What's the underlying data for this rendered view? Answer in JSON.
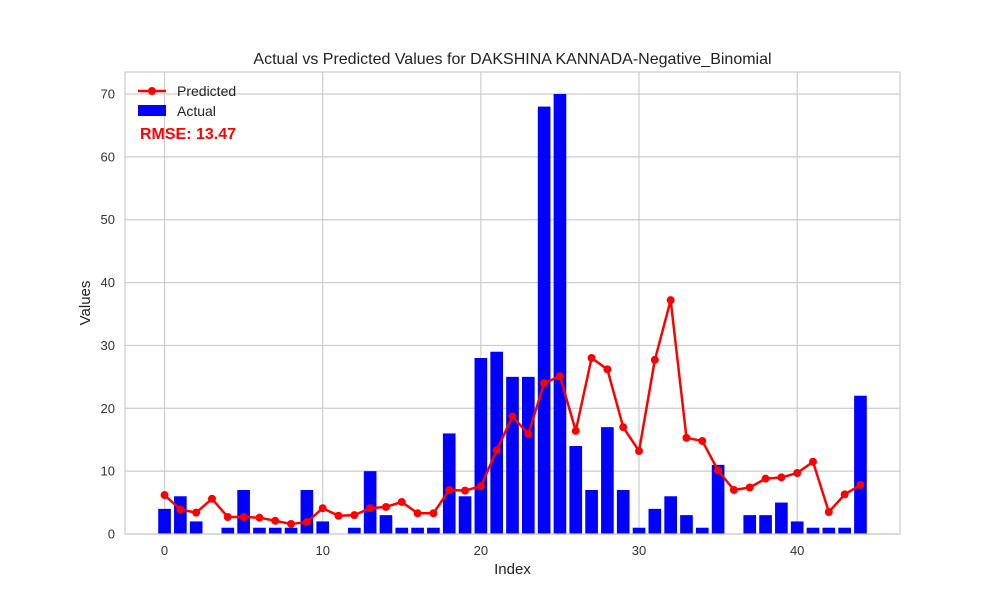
{
  "chart_data": {
    "type": "bar",
    "title": "Actual vs Predicted Values for DAKSHINA KANNADA-Negative_Binomial",
    "xlabel": "Index",
    "ylabel": "Values",
    "xlim": [
      -2.5,
      46.5
    ],
    "ylim": [
      0,
      73.5
    ],
    "xticks": [
      0,
      10,
      20,
      30,
      40
    ],
    "yticks": [
      0,
      10,
      20,
      30,
      40,
      50,
      60,
      70
    ],
    "grid": true,
    "legend_position": "top-left",
    "annotation": {
      "text": "RMSE: 13.47",
      "color": "#ff0000"
    },
    "series": [
      {
        "name": "Actual",
        "type": "bar",
        "color": "#0000ff",
        "values": [
          4,
          6,
          2,
          0,
          1,
          7,
          1,
          1,
          1,
          7,
          2,
          0,
          1,
          10,
          3,
          1,
          1,
          1,
          16,
          6,
          28,
          29,
          25,
          25,
          68,
          70,
          14,
          7,
          17,
          7,
          1,
          4,
          6,
          3,
          1,
          11,
          0,
          3,
          3,
          5,
          2,
          1,
          1,
          1,
          22
        ]
      },
      {
        "name": "Predicted",
        "type": "line",
        "color": "#ff0000",
        "values": [
          6.2,
          3.9,
          3.4,
          5.6,
          2.7,
          2.7,
          2.6,
          2.1,
          1.6,
          1.9,
          4.1,
          2.9,
          3.0,
          4.1,
          4.3,
          5.1,
          3.3,
          3.3,
          7.0,
          6.9,
          7.6,
          13.3,
          18.7,
          15.9,
          24.0,
          25.1,
          16.4,
          28.0,
          26.2,
          17.0,
          13.2,
          27.7,
          37.2,
          15.3,
          14.8,
          10.1,
          7.0,
          7.4,
          8.8,
          9.0,
          9.7,
          11.5,
          3.5,
          6.3,
          7.8
        ]
      }
    ]
  }
}
